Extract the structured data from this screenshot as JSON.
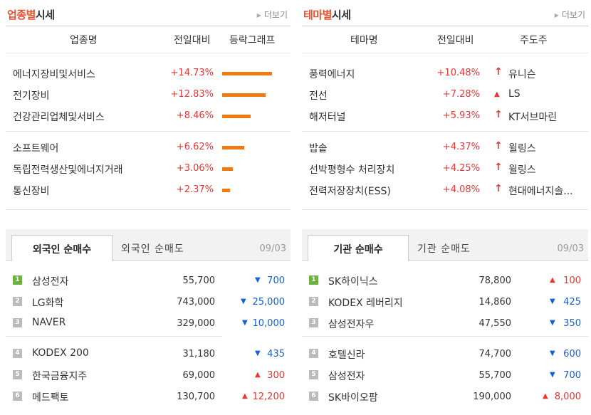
{
  "industry": {
    "title_accent": "업종별",
    "title_rest": "시세",
    "more": "더보기",
    "headers": {
      "name": "업종명",
      "change": "전일대비",
      "graph": "등락그래프"
    },
    "rows": [
      {
        "name": "에너지장비및서비스",
        "change": "+14.73%",
        "pct": 14.73
      },
      {
        "name": "전기장비",
        "change": "+12.83%",
        "pct": 12.83
      },
      {
        "name": "건강관리업체및서비스",
        "change": "+8.46%",
        "pct": 8.46
      },
      {
        "name": "소프트웨어",
        "change": "+6.62%",
        "pct": 6.62
      },
      {
        "name": "독립전력생산및에너지거래",
        "change": "+3.06%",
        "pct": 3.06
      },
      {
        "name": "통신장비",
        "change": "+2.37%",
        "pct": 2.37
      }
    ],
    "bar_color": "#f07a10"
  },
  "theme": {
    "title_accent": "테마별",
    "title_rest": "시세",
    "more": "더보기",
    "headers": {
      "name": "테마명",
      "change": "전일대비",
      "leader": "주도주"
    },
    "rows": [
      {
        "name": "풍력에너지",
        "change": "+10.48%",
        "leader": "유니슨",
        "icon": "upper-limit-arrow-icon"
      },
      {
        "name": "전선",
        "change": "+7.28%",
        "leader": "LS",
        "icon": "rise-triangle-icon"
      },
      {
        "name": "해저터널",
        "change": "+5.93%",
        "leader": "KT서브마린",
        "icon": "upper-limit-arrow-icon"
      },
      {
        "name": "밥솥",
        "change": "+4.37%",
        "leader": "윌링스",
        "icon": "upper-limit-arrow-icon"
      },
      {
        "name": "선박평형수 처리장치",
        "change": "+4.25%",
        "leader": "윌링스",
        "icon": "upper-limit-arrow-icon"
      },
      {
        "name": "전력저장장치(ESS)",
        "change": "+4.08%",
        "leader": "현대에너지솔...",
        "icon": "upper-limit-arrow-icon"
      }
    ]
  },
  "foreign": {
    "tab_active": "외국인 순매수",
    "tab_inactive": "외국인 순매도",
    "date": "09/03",
    "rows": [
      {
        "rank": "1",
        "name": "삼성전자",
        "price": "55,700",
        "dir": "down",
        "delta": "700"
      },
      {
        "rank": "2",
        "name": "LG화학",
        "price": "743,000",
        "dir": "down",
        "delta": "25,000"
      },
      {
        "rank": "3",
        "name": "NAVER",
        "price": "329,000",
        "dir": "down",
        "delta": "10,000"
      },
      {
        "rank": "4",
        "name": "KODEX 200",
        "price": "31,180",
        "dir": "down",
        "delta": "435"
      },
      {
        "rank": "5",
        "name": "한국금융지주",
        "price": "69,000",
        "dir": "up",
        "delta": "300"
      },
      {
        "rank": "6",
        "name": "메드팩토",
        "price": "130,700",
        "dir": "up",
        "delta": "12,200"
      }
    ]
  },
  "institution": {
    "tab_active": "기관 순매수",
    "tab_inactive": "기관 순매도",
    "date": "09/03",
    "rows": [
      {
        "rank": "1",
        "name": "SK하이닉스",
        "price": "78,800",
        "dir": "up",
        "delta": "100"
      },
      {
        "rank": "2",
        "name": "KODEX 레버리지",
        "price": "14,860",
        "dir": "down",
        "delta": "425"
      },
      {
        "rank": "3",
        "name": "삼성전자우",
        "price": "47,550",
        "dir": "down",
        "delta": "350"
      },
      {
        "rank": "4",
        "name": "호텔신라",
        "price": "74,700",
        "dir": "down",
        "delta": "600"
      },
      {
        "rank": "5",
        "name": "삼성전자",
        "price": "55,700",
        "dir": "down",
        "delta": "700"
      },
      {
        "rank": "6",
        "name": "SK바이오팜",
        "price": "190,000",
        "dir": "up",
        "delta": "8,000"
      }
    ]
  },
  "colors": {
    "accent": "#e8502c",
    "rise": "#e33333",
    "fall": "#1560d6",
    "rank_first": "#6bb33c",
    "rank_other": "#bbbbbb"
  }
}
